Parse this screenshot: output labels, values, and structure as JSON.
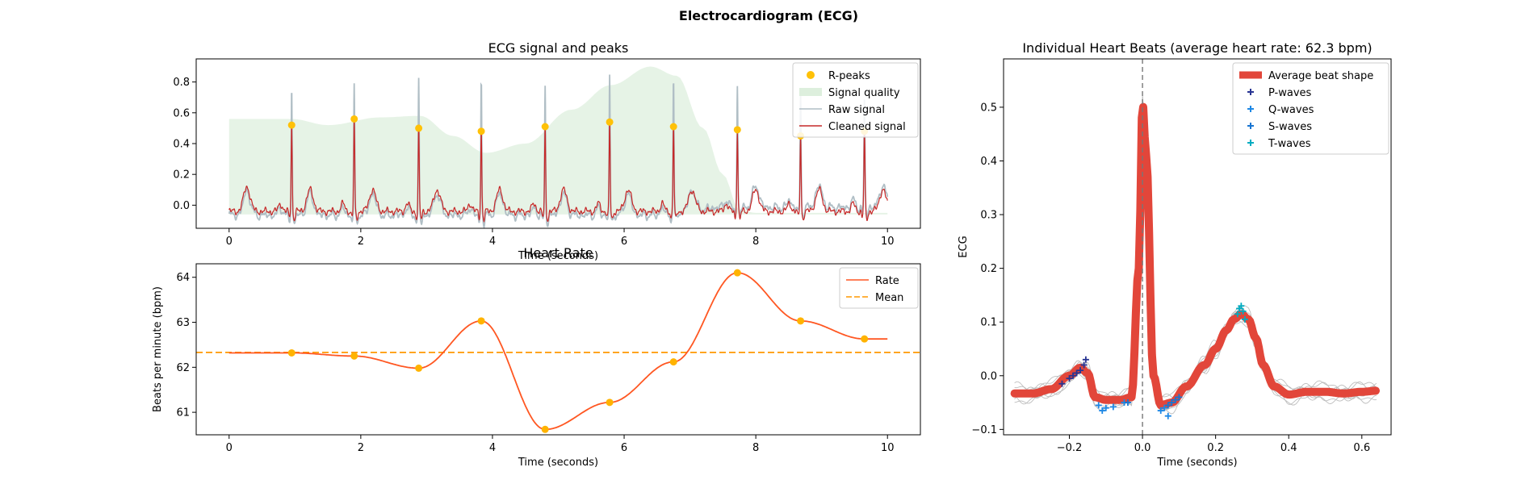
{
  "figure": {
    "suptitle": "Electrocardiogram (ECG)"
  },
  "chart_data": [
    {
      "id": "signal",
      "type": "line",
      "title": "ECG signal and peaks",
      "xlabel": "Time (seconds)",
      "ylabel": "",
      "xlim": [
        -0.5,
        10.5
      ],
      "ylim": [
        -0.15,
        0.95
      ],
      "xticks": [
        0,
        2,
        4,
        6,
        8,
        10
      ],
      "yticks": [
        0.0,
        0.2,
        0.4,
        0.6,
        0.8
      ],
      "xtick_labels": [
        "0",
        "2",
        "4",
        "6",
        "8",
        "10"
      ],
      "ytick_labels": [
        "0.0",
        "0.2",
        "0.4",
        "0.6",
        "0.8"
      ],
      "legend_position": "top-right",
      "legend": [
        "R-peaks",
        "Signal quality",
        "Raw signal",
        "Cleaned signal"
      ],
      "colors": {
        "peaks": "#FFC107",
        "quality": "#DDEFDD",
        "raw": "#B0BEC5",
        "clean": "#C62828"
      },
      "r_peaks": {
        "x": [
          0.95,
          1.9,
          2.88,
          3.83,
          4.8,
          5.78,
          6.75,
          7.72,
          8.68,
          9.65
        ],
        "y": [
          0.52,
          0.56,
          0.5,
          0.48,
          0.51,
          0.54,
          0.51,
          0.49,
          0.45,
          0.48
        ]
      },
      "raw_peak_heights": [
        0.78,
        0.8,
        0.82,
        0.84,
        0.79,
        0.87,
        0.84,
        0.76,
        0.7,
        0.68
      ],
      "signal_quality": {
        "x": [
          0,
          0.95,
          1.5,
          2.3,
          2.9,
          3.4,
          3.9,
          4.5,
          5.2,
          5.8,
          6.4,
          6.8,
          7.2,
          7.5,
          7.75,
          8.0,
          8.5,
          9.0,
          9.6,
          10.0
        ],
        "y": [
          0.56,
          0.56,
          0.52,
          0.57,
          0.58,
          0.45,
          0.34,
          0.4,
          0.62,
          0.78,
          0.9,
          0.84,
          0.5,
          0.2,
          -0.03,
          -0.05,
          -0.05,
          -0.05,
          -0.05,
          -0.05
        ]
      }
    },
    {
      "id": "rate",
      "type": "line",
      "title": "Heart Rate",
      "xlabel": "Time (seconds)",
      "ylabel": "Beats per minute (bpm)",
      "xlim": [
        -0.5,
        10.5
      ],
      "ylim": [
        60.5,
        64.3
      ],
      "xticks": [
        0,
        2,
        4,
        6,
        8,
        10
      ],
      "yticks": [
        61,
        62,
        63,
        64
      ],
      "xtick_labels": [
        "0",
        "2",
        "4",
        "6",
        "8",
        "10"
      ],
      "ytick_labels": [
        "61",
        "62",
        "63",
        "64"
      ],
      "legend_position": "top-right",
      "legend": [
        "Rate",
        "Mean"
      ],
      "colors": {
        "rate": "#FF5722",
        "mean": "#FF9800",
        "points": "#FFB300"
      },
      "series": [
        {
          "name": "Rate",
          "x": [
            0,
            0.95,
            1.9,
            2.88,
            3.83,
            4.8,
            5.78,
            6.75,
            7.72,
            8.68,
            9.65,
            10.0
          ],
          "y": [
            62.32,
            62.32,
            62.25,
            61.98,
            63.03,
            60.62,
            61.22,
            62.12,
            64.1,
            63.03,
            62.63,
            62.63
          ]
        }
      ],
      "points": {
        "x": [
          0.95,
          1.9,
          2.88,
          3.83,
          4.8,
          5.78,
          6.75,
          7.72,
          8.68,
          9.65
        ],
        "y": [
          62.32,
          62.25,
          61.98,
          63.03,
          60.62,
          61.22,
          62.12,
          64.1,
          63.03,
          62.63
        ]
      },
      "mean": 62.33
    },
    {
      "id": "beats",
      "type": "line",
      "title": "Individual Heart Beats (average heart rate: 62.3 bpm)",
      "xlabel": "Time (seconds)",
      "ylabel": "ECG",
      "xlim": [
        -0.38,
        0.68
      ],
      "ylim": [
        -0.11,
        0.59
      ],
      "xticks": [
        -0.2,
        0.0,
        0.2,
        0.4,
        0.6
      ],
      "yticks": [
        -0.1,
        0.0,
        0.1,
        0.2,
        0.3,
        0.4,
        0.5
      ],
      "xtick_labels": [
        "−0.2",
        "0.0",
        "0.2",
        "0.4",
        "0.6"
      ],
      "ytick_labels": [
        "−0.1",
        "0.0",
        "0.1",
        "0.2",
        "0.3",
        "0.4",
        "0.5"
      ],
      "legend_position": "top-right",
      "legend": [
        "Average beat shape",
        "P-waves",
        "Q-waves",
        "S-waves",
        "T-waves"
      ],
      "colors": {
        "avg": "#E2463A",
        "p": "#283593",
        "q": "#1E88E5",
        "s": "#1976D2",
        "t": "#00ACC1",
        "beats": "#BDBDBD"
      },
      "average_beat": {
        "x": [
          -0.35,
          -0.3,
          -0.25,
          -0.2,
          -0.17,
          -0.15,
          -0.13,
          -0.1,
          -0.06,
          -0.03,
          -0.01,
          0.0,
          0.01,
          0.03,
          0.05,
          0.08,
          0.12,
          0.17,
          0.2,
          0.23,
          0.25,
          0.27,
          0.29,
          0.31,
          0.33,
          0.36,
          0.4,
          0.45,
          0.5,
          0.55,
          0.6,
          0.64
        ],
        "y": [
          -0.033,
          -0.033,
          -0.025,
          0.0,
          0.015,
          0.005,
          -0.04,
          -0.045,
          -0.045,
          -0.04,
          0.2,
          0.51,
          0.41,
          0.0,
          -0.055,
          -0.05,
          -0.02,
          0.02,
          0.05,
          0.085,
          0.105,
          0.115,
          0.105,
          0.07,
          0.02,
          -0.02,
          -0.035,
          -0.03,
          -0.03,
          -0.033,
          -0.03,
          -0.028
        ]
      },
      "p_waves": {
        "x": [
          -0.22,
          -0.2,
          -0.19,
          -0.18,
          -0.17,
          -0.16,
          -0.155
        ],
        "y": [
          -0.015,
          -0.005,
          0.0,
          0.005,
          0.01,
          0.02,
          0.03
        ]
      },
      "q_waves": {
        "x": [
          -0.12,
          -0.11,
          -0.1,
          -0.08,
          -0.05,
          0.05,
          0.06,
          0.07
        ],
        "y": [
          -0.055,
          -0.065,
          -0.06,
          -0.058,
          -0.05,
          -0.065,
          -0.06,
          -0.075
        ]
      },
      "s_waves": {
        "x": [
          -0.04,
          0.07,
          0.08,
          0.09,
          0.1
        ],
        "y": [
          -0.05,
          -0.055,
          -0.05,
          -0.045,
          -0.04
        ]
      },
      "t_waves": {
        "x": [
          0.26,
          0.265,
          0.27,
          0.275,
          0.28
        ],
        "y": [
          0.115,
          0.125,
          0.13,
          0.12,
          0.105
        ]
      }
    }
  ]
}
